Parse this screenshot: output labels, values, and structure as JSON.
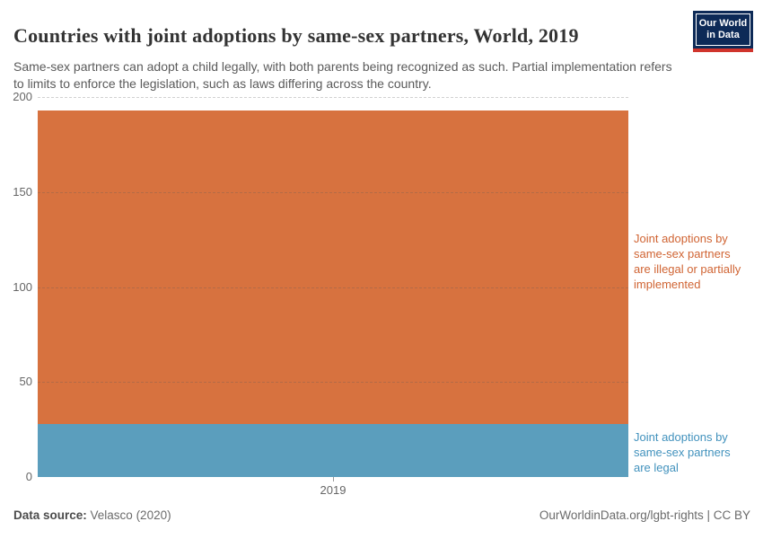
{
  "header": {
    "title": "Countries with joint adoptions by same-sex partners, World, 2019",
    "subtitle": "Same-sex partners can adopt a child legally, with both parents being recognized as such. Partial implementation refers to limits to enforce the legislation, such as laws differing across the country.",
    "logo": {
      "line1": "Our World",
      "line2": "in Data",
      "bg_color": "#0d2a57",
      "stripe_color": "#d0342c"
    }
  },
  "chart_data": {
    "type": "bar",
    "stacked": true,
    "categories": [
      "2019"
    ],
    "series": [
      {
        "key": "legal",
        "name": "Joint adoptions by same-sex partners are legal",
        "values": [
          28
        ],
        "color": "#5b9ebd",
        "label_color": "#4292bd"
      },
      {
        "key": "illegal",
        "name": "Joint adoptions by same-sex partners are illegal or partially implemented",
        "values": [
          165
        ],
        "color": "#d7723f",
        "label_color": "#d06433"
      }
    ],
    "total": 193,
    "title": "Countries with joint adoptions by same-sex partners, World, 2019",
    "xlabel": "",
    "ylabel": "",
    "ylim": [
      0,
      200
    ],
    "yticks": [
      0,
      50,
      100,
      150,
      200
    ],
    "grid": "dashed-horizontal",
    "legend_position": "right-of-bar"
  },
  "footer": {
    "source_label": "Data source:",
    "source_value": " Velasco (2020)",
    "right_text": "OurWorldinData.org/lgbt-rights | CC BY"
  }
}
